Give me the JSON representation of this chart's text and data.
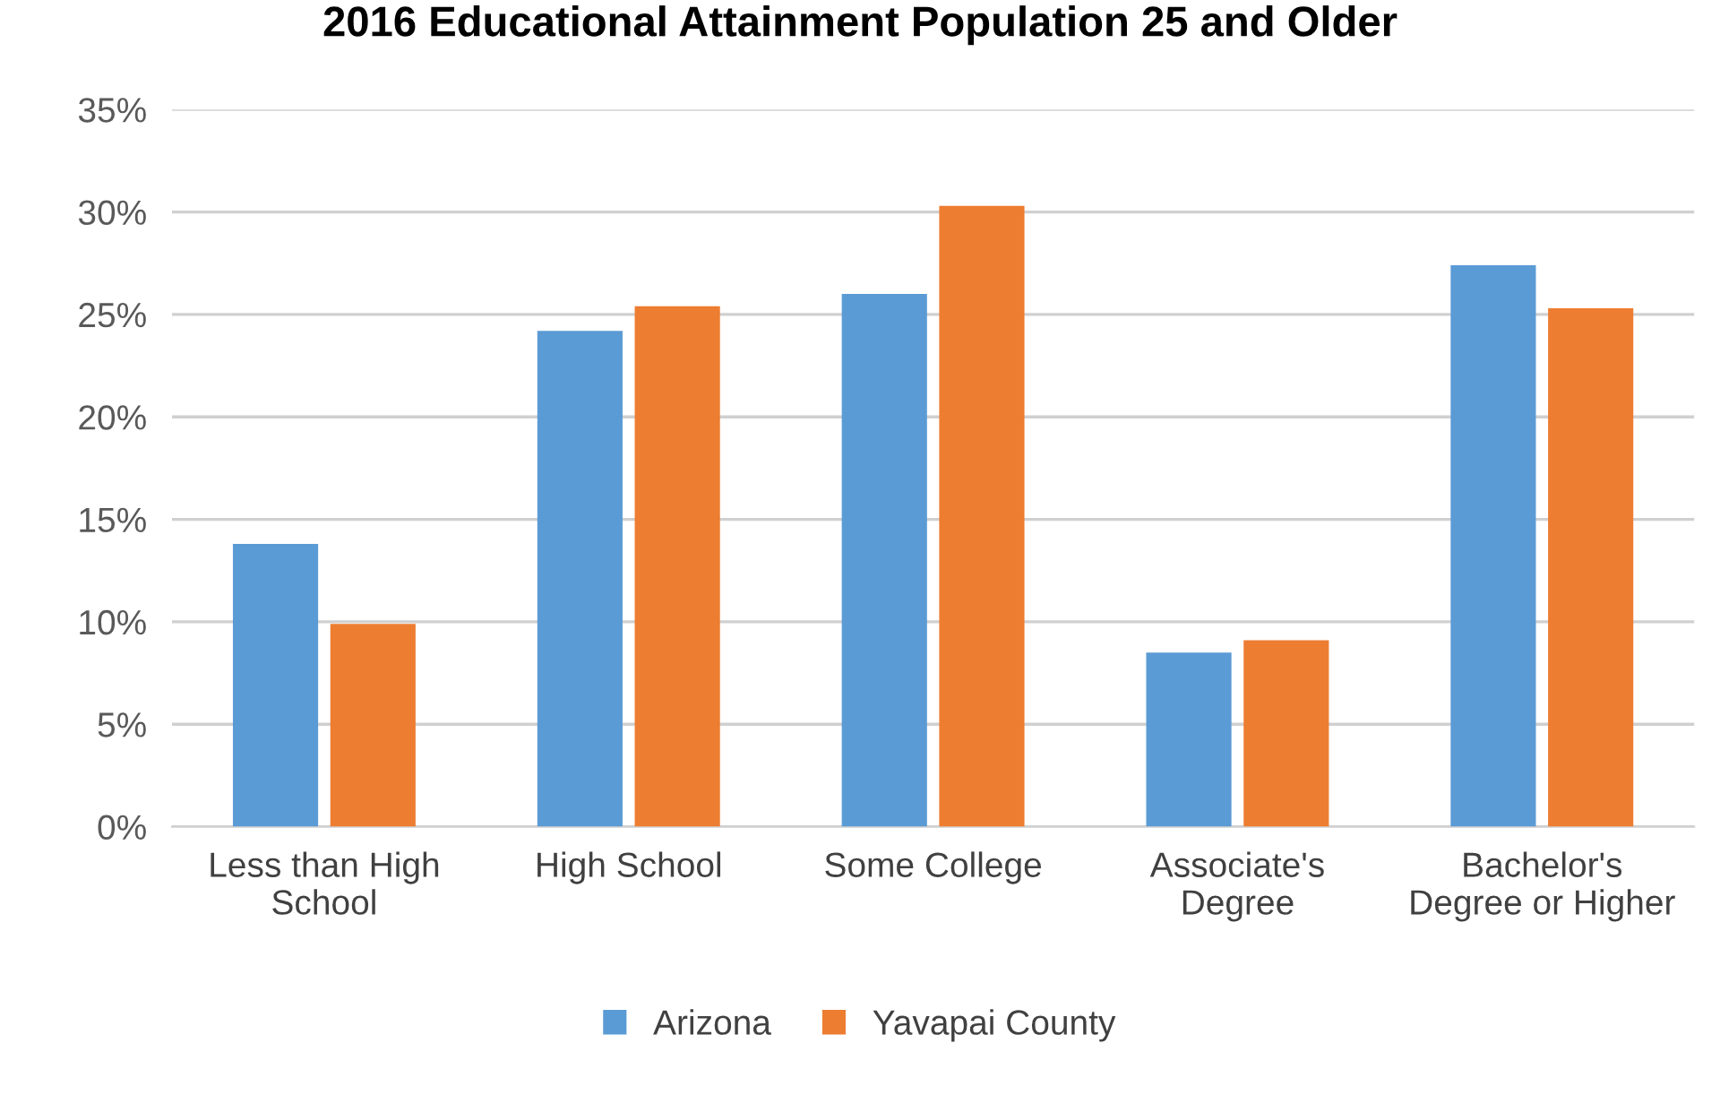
{
  "chart_data": {
    "type": "bar",
    "title": "2016 Educational Attainment Population 25 and Older",
    "categories": [
      "Less than High\nSchool",
      "High School",
      "Some College",
      "Associate's\nDegree",
      "Bachelor's\nDegree or Higher"
    ],
    "series": [
      {
        "name": "Arizona",
        "color": "#5b9bd5",
        "values": [
          13.8,
          24.2,
          26.0,
          8.5,
          27.4
        ]
      },
      {
        "name": "Yavapai County",
        "color": "#ed7d31",
        "values": [
          9.9,
          25.4,
          30.3,
          9.1,
          25.3
        ]
      }
    ],
    "ylim": [
      0,
      35
    ],
    "yticks": [
      {
        "value": 0,
        "label": "0%"
      },
      {
        "value": 5,
        "label": "5%"
      },
      {
        "value": 10,
        "label": "10%"
      },
      {
        "value": 15,
        "label": "15%"
      },
      {
        "value": 20,
        "label": "20%"
      },
      {
        "value": 25,
        "label": "25%"
      },
      {
        "value": 30,
        "label": "30%"
      },
      {
        "value": 35,
        "label": "35%"
      }
    ],
    "grid": "y",
    "legend": "bottom"
  }
}
